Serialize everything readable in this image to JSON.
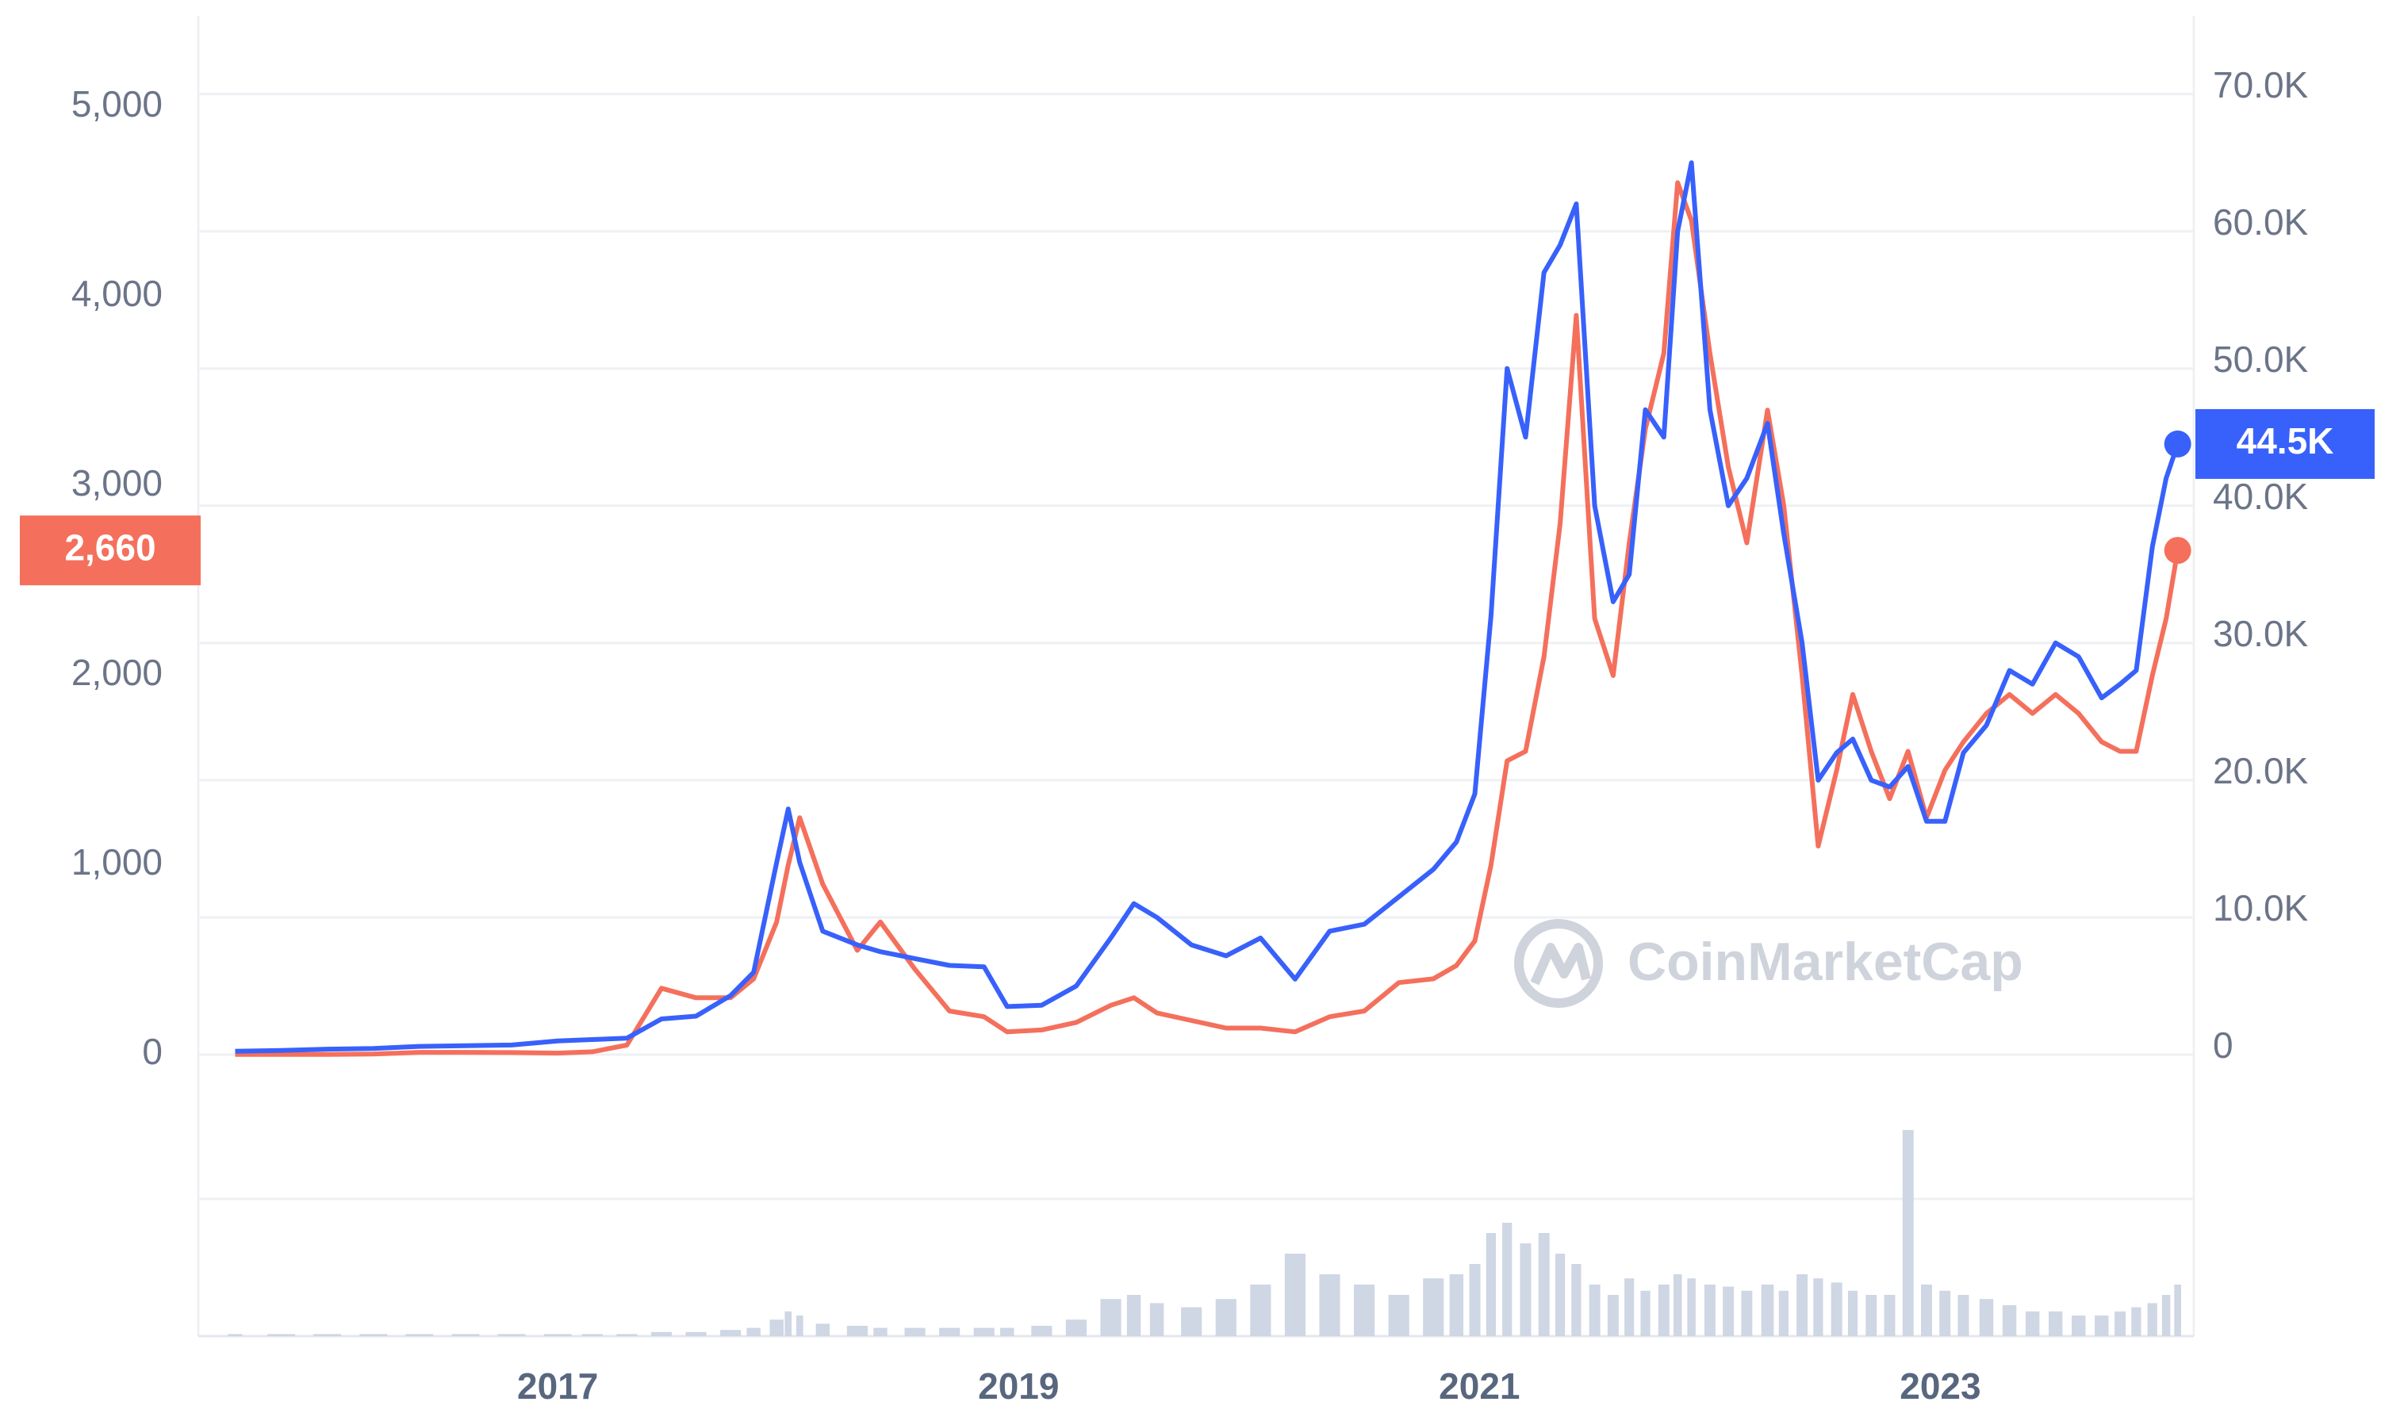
{
  "chart_data": {
    "type": "line",
    "watermark": "CoinMarketCap",
    "x": [
      2015.6,
      2015.8,
      2016.0,
      2016.2,
      2016.4,
      2016.6,
      2016.8,
      2017.0,
      2017.15,
      2017.3,
      2017.45,
      2017.6,
      2017.75,
      2017.85,
      2017.95,
      2018.0,
      2018.05,
      2018.15,
      2018.3,
      2018.4,
      2018.55,
      2018.7,
      2018.85,
      2018.95,
      2019.1,
      2019.25,
      2019.4,
      2019.5,
      2019.6,
      2019.75,
      2019.9,
      2020.05,
      2020.2,
      2020.35,
      2020.5,
      2020.65,
      2020.8,
      2020.9,
      2020.98,
      2021.05,
      2021.12,
      2021.2,
      2021.28,
      2021.35,
      2021.42,
      2021.5,
      2021.58,
      2021.65,
      2021.72,
      2021.8,
      2021.86,
      2021.92,
      2022.0,
      2022.08,
      2022.16,
      2022.25,
      2022.32,
      2022.4,
      2022.47,
      2022.55,
      2022.62,
      2022.7,
      2022.78,
      2022.86,
      2022.94,
      2023.02,
      2023.1,
      2023.2,
      2023.3,
      2023.4,
      2023.5,
      2023.6,
      2023.7,
      2023.78,
      2023.85,
      2023.92,
      2023.98,
      2024.03
    ],
    "xlim": [
      2015.44,
      2024.1
    ],
    "xticks": [
      2017,
      2019,
      2021,
      2023
    ],
    "ylim": [
      0,
      5480
    ],
    "yticks": [
      0,
      {
        "value": 1000,
        "label": "1,000"
      },
      {
        "value": 2000,
        "label": "2,000"
      },
      {
        "value": 3000,
        "label": "3,000"
      },
      {
        "value": 4000,
        "label": "4,000"
      },
      {
        "value": 5000,
        "label": "5,000"
      }
    ],
    "y2lim": [
      0,
      75700
    ],
    "y2ticks": [
      0,
      {
        "value": 10000,
        "label": "10.0K"
      },
      {
        "value": 20000,
        "label": "20.0K"
      },
      {
        "value": 30000,
        "label": "30.0K"
      },
      {
        "value": 40000,
        "label": "40.0K"
      },
      {
        "value": 50000,
        "label": "50.0K"
      },
      {
        "value": 60000,
        "label": "60.0K"
      },
      {
        "value": 70000,
        "label": "70.0K"
      }
    ],
    "grid": true,
    "series": [
      {
        "color": "#f4705c",
        "axis": "y",
        "values": [
          1,
          1,
          1,
          3,
          12,
          12,
          11,
          8,
          15,
          50,
          350,
          300,
          300,
          400,
          700,
          1000,
          1250,
          900,
          550,
          700,
          450,
          230,
          200,
          120,
          130,
          170,
          260,
          300,
          220,
          180,
          140,
          140,
          120,
          200,
          230,
          380,
          400,
          470,
          600,
          1000,
          1550,
          1600,
          2100,
          2800,
          3900,
          2300,
          2000,
          2700,
          3300,
          3700,
          4600,
          4400,
          3700,
          3100,
          2700,
          3400,
          2900,
          2000,
          1100,
          1500,
          1900,
          1600,
          1350,
          1600,
          1250,
          1500,
          1650,
          1800,
          1900,
          1800,
          1900,
          1800,
          1650,
          1600,
          1600,
          2000,
          2300,
          2660
        ],
        "badge": {
          "value": 2660,
          "label": "2,660"
        }
      },
      {
        "color": "#3861fb",
        "axis": "y2",
        "values": [
          250,
          300,
          400,
          450,
          600,
          650,
          700,
          1000,
          1100,
          1200,
          2600,
          2800,
          4300,
          6000,
          14000,
          17900,
          14000,
          9000,
          8000,
          7500,
          7000,
          6500,
          6400,
          3500,
          3600,
          5000,
          8500,
          11000,
          10000,
          8000,
          7200,
          8500,
          5500,
          9000,
          9500,
          11500,
          13500,
          15500,
          19000,
          32000,
          50000,
          45000,
          57000,
          59000,
          62000,
          40000,
          33000,
          35000,
          47000,
          45000,
          60000,
          65000,
          47000,
          40000,
          42000,
          46000,
          38000,
          30000,
          20000,
          22000,
          23000,
          20000,
          19500,
          21000,
          17000,
          17000,
          22000,
          24000,
          28000,
          27000,
          30000,
          29000,
          26000,
          27000,
          28000,
          37000,
          42000,
          44500
        ],
        "badge": {
          "value": 44500,
          "label": "44.5K"
        }
      }
    ],
    "volume": {
      "color": "#cfd6e4",
      "ylim": [
        0,
        100
      ],
      "values": [
        1,
        1,
        1,
        1,
        1,
        1,
        1,
        1,
        1,
        1,
        2,
        2,
        3,
        4,
        8,
        12,
        10,
        6,
        5,
        4,
        4,
        4,
        4,
        4,
        5,
        8,
        18,
        20,
        16,
        14,
        18,
        25,
        40,
        30,
        25,
        20,
        28,
        30,
        35,
        50,
        55,
        45,
        50,
        40,
        35,
        25,
        20,
        28,
        22,
        25,
        30,
        28,
        25,
        24,
        22,
        25,
        22,
        30,
        28,
        26,
        22,
        20,
        20,
        100,
        25,
        22,
        20,
        18,
        15,
        12,
        12,
        10,
        10,
        12,
        14,
        16,
        20,
        25
      ]
    }
  }
}
